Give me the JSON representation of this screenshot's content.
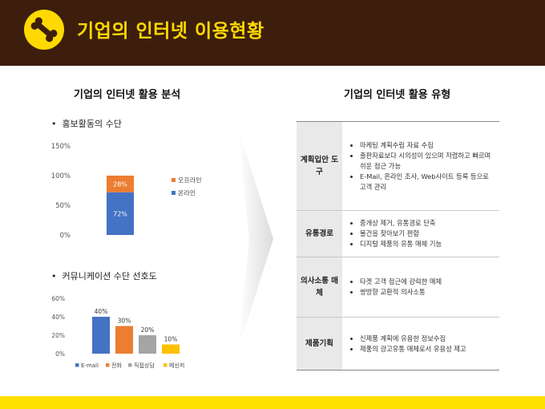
{
  "header": {
    "title": "기업의 인터넷 이용현황",
    "logo_icon": "bone-icon",
    "background": "#3d1e0c",
    "accent": "#ffd900"
  },
  "left": {
    "title": "기업의 인터넷 활용 분석",
    "chart1_title": "홍보활동의 수단",
    "chart2_title": "커뮤니케이션 수단 선호도"
  },
  "right": {
    "title": "기업의 인터넷 활용 유형",
    "rows": [
      {
        "label": "계획입안 도구",
        "items": [
          "마케팅 계획수립 자료 수집",
          "출판자료보다 시의성이 있으며 저렴하고 빠르며 쉬운 접근 가능",
          "E-Mail, 온라인 조사, Web사이트 등록 등으로 고객 관리"
        ]
      },
      {
        "label": "유통경로",
        "items": [
          "중개상 제거, 유통경로 단축",
          "물건을 찾아보기 편함",
          "디지털 제품의 유통 매체 기능"
        ]
      },
      {
        "label": "의사소통 매체",
        "items": [
          "타겟 고객 접근에 강력한 매체",
          "쌍방향 교환적 의사소통"
        ]
      },
      {
        "label": "제품기획",
        "items": [
          "신제품 계획에 유용한 정보수집",
          "제품의 광고유통 매체로서 유용성 제고"
        ]
      }
    ]
  },
  "chart_data": [
    {
      "type": "bar",
      "stacked": true,
      "title": "홍보활동의 수단",
      "categories": [
        ""
      ],
      "series": [
        {
          "name": "온라인",
          "values": [
            72
          ],
          "color": "#4472c4"
        },
        {
          "name": "오프라인",
          "values": [
            28
          ],
          "color": "#ed7d31"
        }
      ],
      "y_ticks": [
        "0%",
        "50%",
        "100%",
        "150%"
      ],
      "ylim": [
        0,
        150
      ],
      "data_labels": [
        "72%",
        "28%"
      ],
      "legend_placement": "right",
      "grid": false
    },
    {
      "type": "bar",
      "title": "커뮤니케이션 수단 선호도",
      "categories": [
        "E-mail",
        "전화",
        "직접상담",
        "메신저"
      ],
      "values": [
        40,
        30,
        20,
        10
      ],
      "value_labels": [
        "40%",
        "30%",
        "20%",
        "10%"
      ],
      "colors": [
        "#4472c4",
        "#ed7d31",
        "#a5a5a5",
        "#ffc000"
      ],
      "y_ticks": [
        "0%",
        "20%",
        "40%",
        "60%"
      ],
      "ylim": [
        0,
        60
      ],
      "legend_placement": "bottom",
      "grid": false
    }
  ]
}
